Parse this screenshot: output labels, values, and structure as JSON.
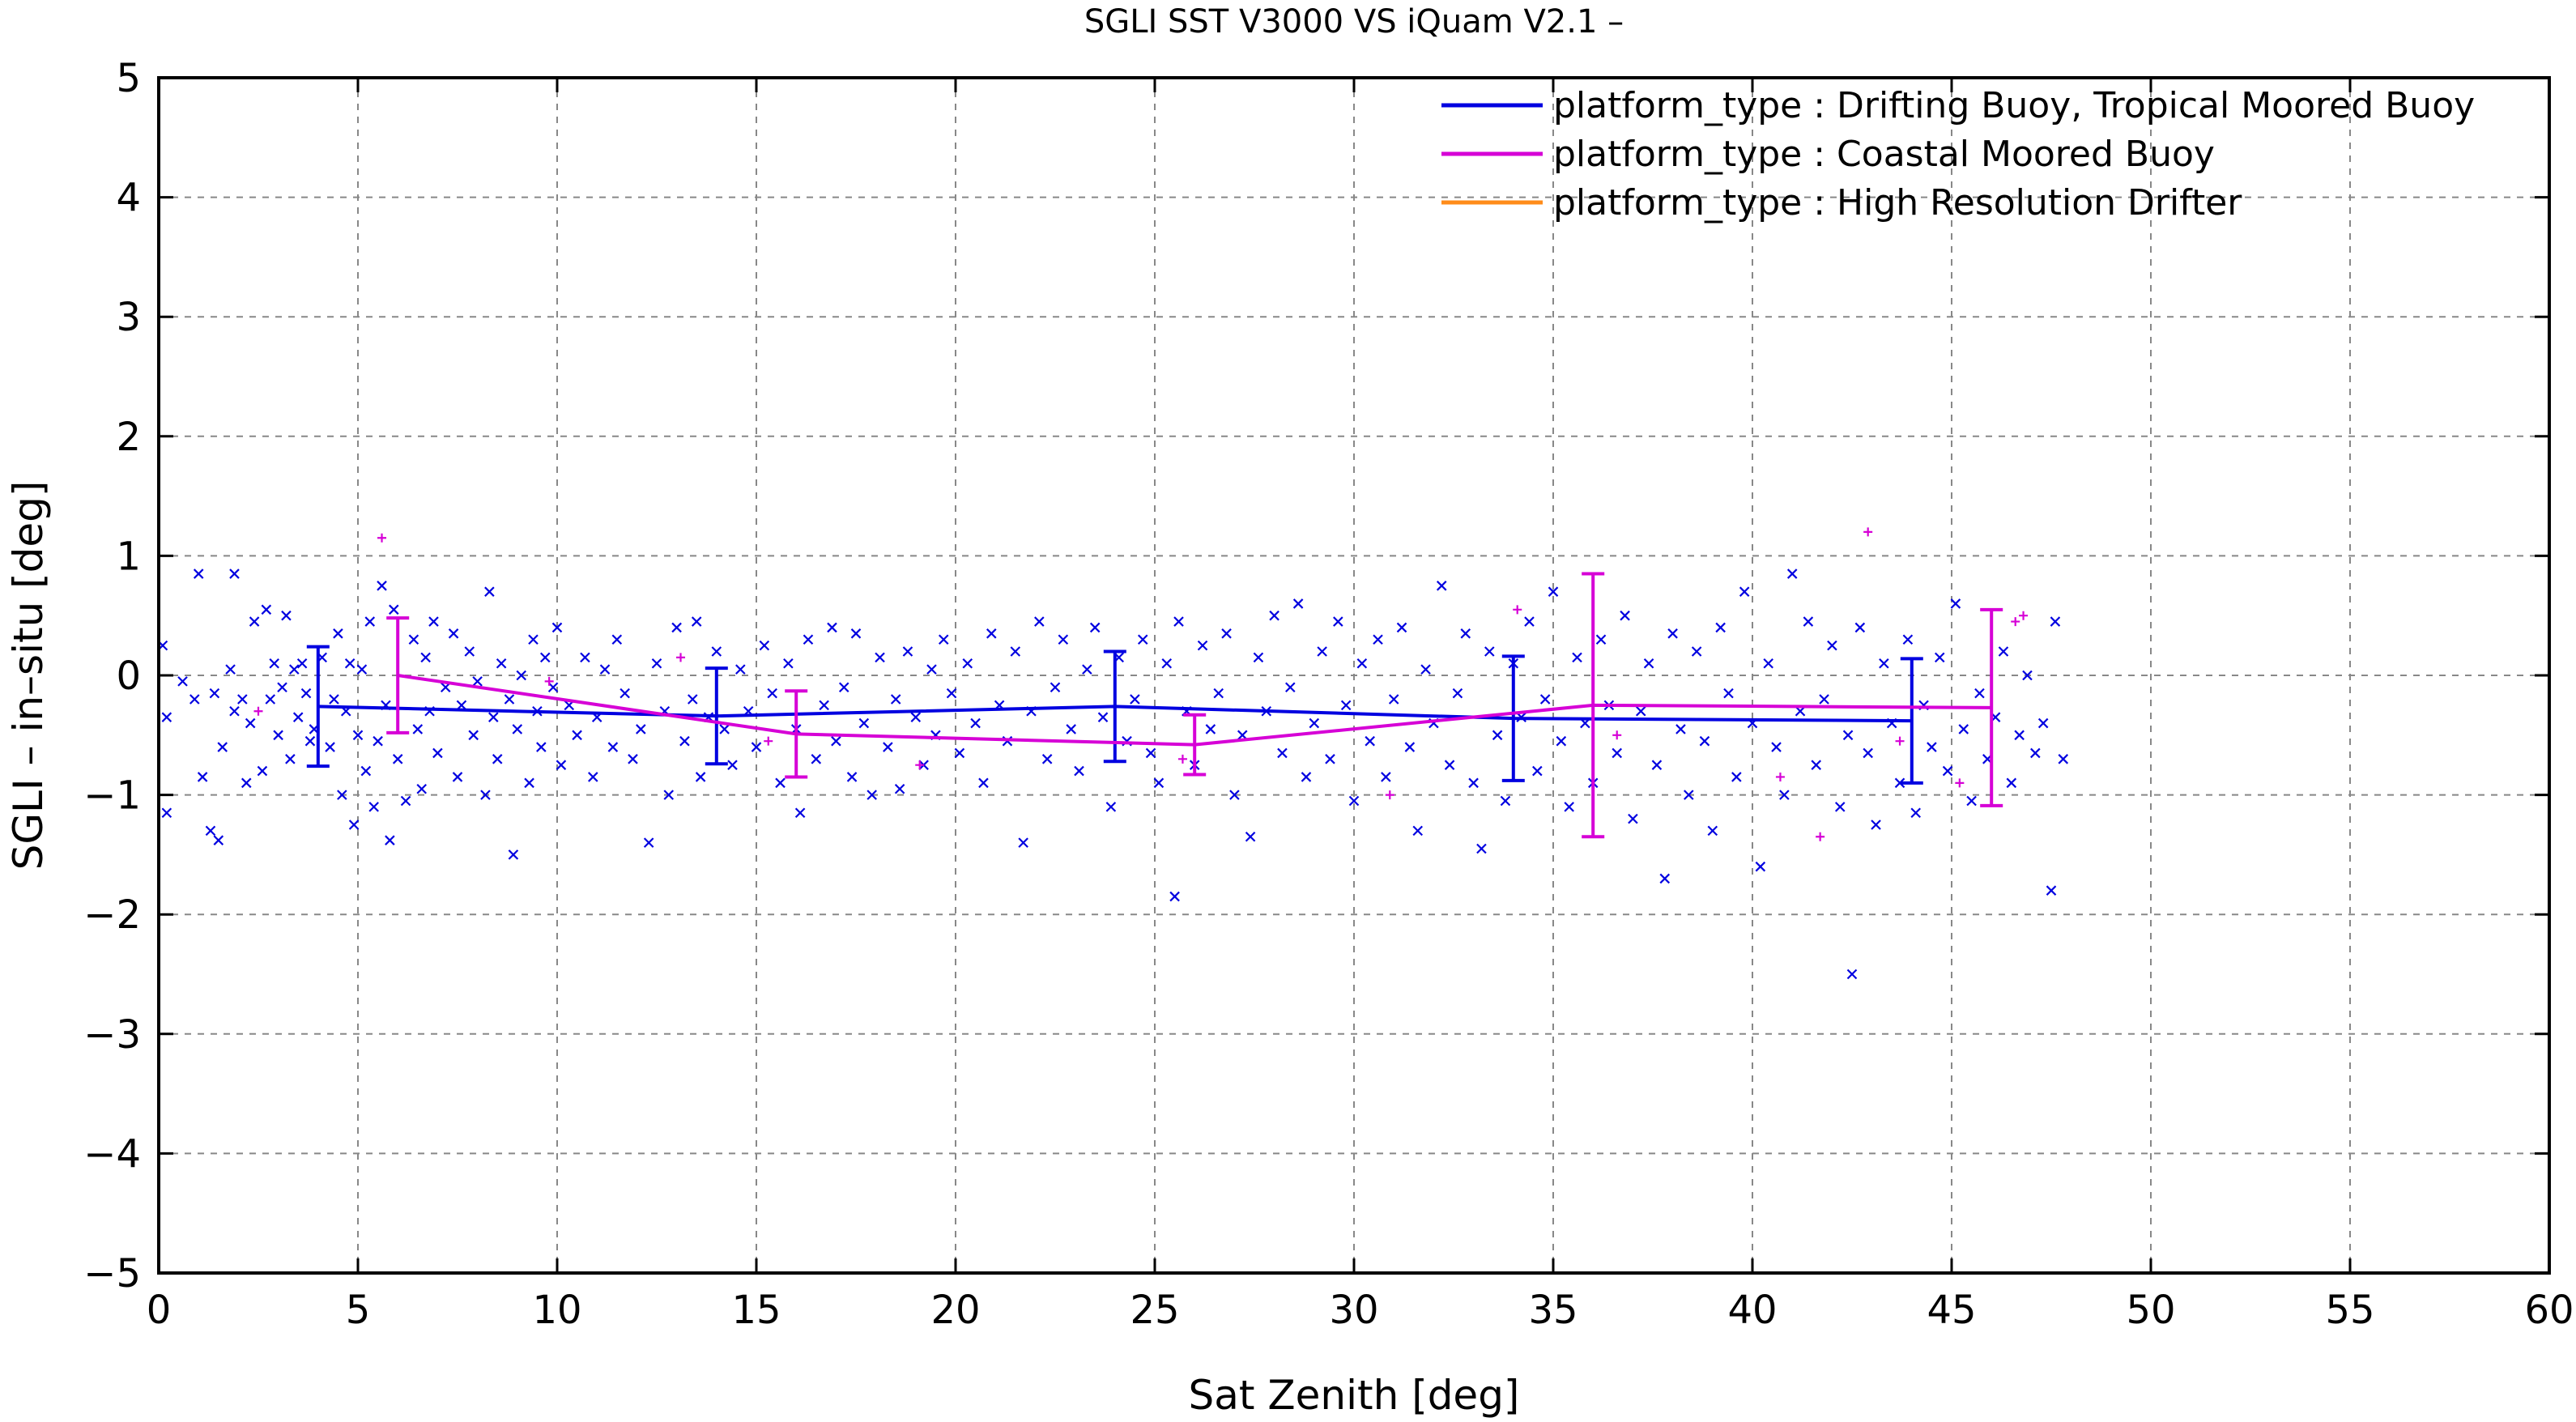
{
  "chart_data": {
    "type": "scatter",
    "title": "SGLI SST V3000 VS iQuam V2.1  –",
    "xlabel": "Sat Zenith [deg]",
    "ylabel": "SGLI – in–situ [deg]",
    "xlim": [
      0,
      60
    ],
    "ylim": [
      -5,
      5
    ],
    "x_ticks": [
      0,
      5,
      10,
      15,
      20,
      25,
      30,
      35,
      40,
      45,
      50,
      55,
      60
    ],
    "y_ticks": [
      -5,
      -4,
      -3,
      -2,
      -1,
      0,
      1,
      2,
      3,
      4,
      5
    ],
    "x_tick_labels": [
      "0",
      "5",
      "10",
      "15",
      "20",
      "25",
      "30",
      "35",
      "40",
      "45",
      "50",
      "55",
      "60"
    ],
    "y_tick_labels": [
      "−5",
      "−4",
      "−3",
      "−2",
      "−1",
      "0",
      "1",
      "2",
      "3",
      "4",
      "5"
    ],
    "grid": true,
    "legend_position": "top-right",
    "series": [
      {
        "name": "platform_type : Drifting Buoy, Tropical Moored Buoy",
        "color": "#0000e0",
        "marker": "x",
        "mean_x": [
          4,
          14,
          24,
          34,
          44
        ],
        "mean_y": [
          -0.26,
          -0.34,
          -0.26,
          -0.36,
          -0.38
        ],
        "err_y": [
          0.5,
          0.4,
          0.46,
          0.52,
          0.52
        ],
        "points": [
          [
            0.1,
            0.25
          ],
          [
            0.2,
            -0.35
          ],
          [
            0.2,
            -1.15
          ],
          [
            0.6,
            -0.05
          ],
          [
            0.9,
            -0.2
          ],
          [
            1.0,
            0.85
          ],
          [
            1.1,
            -0.85
          ],
          [
            1.3,
            -1.3
          ],
          [
            1.4,
            -0.15
          ],
          [
            1.5,
            -1.38
          ],
          [
            1.6,
            -0.6
          ],
          [
            1.8,
            0.05
          ],
          [
            1.9,
            -0.3
          ],
          [
            1.9,
            0.85
          ],
          [
            2.1,
            -0.2
          ],
          [
            2.2,
            -0.9
          ],
          [
            2.3,
            -0.4
          ],
          [
            2.4,
            0.45
          ],
          [
            2.6,
            -0.8
          ],
          [
            2.7,
            0.55
          ],
          [
            2.8,
            -0.2
          ],
          [
            2.9,
            0.1
          ],
          [
            3.0,
            -0.5
          ],
          [
            3.1,
            -0.1
          ],
          [
            3.2,
            0.5
          ],
          [
            3.3,
            -0.7
          ],
          [
            3.4,
            0.05
          ],
          [
            3.5,
            -0.35
          ],
          [
            3.6,
            0.1
          ],
          [
            3.7,
            -0.15
          ],
          [
            3.8,
            -0.55
          ],
          [
            3.9,
            -0.45
          ],
          [
            4.1,
            0.15
          ],
          [
            4.3,
            -0.6
          ],
          [
            4.4,
            -0.2
          ],
          [
            4.5,
            0.35
          ],
          [
            4.6,
            -1.0
          ],
          [
            4.7,
            -0.3
          ],
          [
            4.8,
            0.1
          ],
          [
            4.9,
            -1.25
          ],
          [
            5.0,
            -0.5
          ],
          [
            5.1,
            0.05
          ],
          [
            5.2,
            -0.8
          ],
          [
            5.3,
            0.45
          ],
          [
            5.4,
            -1.1
          ],
          [
            5.5,
            -0.55
          ],
          [
            5.6,
            0.75
          ],
          [
            5.7,
            -0.25
          ],
          [
            5.8,
            -1.38
          ],
          [
            5.9,
            0.55
          ],
          [
            6.0,
            -0.7
          ],
          [
            6.2,
            -1.05
          ],
          [
            6.4,
            0.3
          ],
          [
            6.5,
            -0.45
          ],
          [
            6.6,
            -0.95
          ],
          [
            6.7,
            0.15
          ],
          [
            6.8,
            -0.3
          ],
          [
            6.9,
            0.45
          ],
          [
            7.0,
            -0.65
          ],
          [
            7.2,
            -0.1
          ],
          [
            7.4,
            0.35
          ],
          [
            7.5,
            -0.85
          ],
          [
            7.6,
            -0.25
          ],
          [
            7.8,
            0.2
          ],
          [
            7.9,
            -0.5
          ],
          [
            8.0,
            -0.05
          ],
          [
            8.2,
            -1.0
          ],
          [
            8.3,
            0.7
          ],
          [
            8.4,
            -0.35
          ],
          [
            8.5,
            -0.7
          ],
          [
            8.6,
            0.1
          ],
          [
            8.8,
            -0.2
          ],
          [
            8.9,
            -1.5
          ],
          [
            9.0,
            -0.45
          ],
          [
            9.1,
            0.0
          ],
          [
            9.3,
            -0.9
          ],
          [
            9.4,
            0.3
          ],
          [
            9.5,
            -0.3
          ],
          [
            9.6,
            -0.6
          ],
          [
            9.7,
            0.15
          ],
          [
            9.9,
            -0.1
          ],
          [
            10.0,
            0.4
          ],
          [
            10.1,
            -0.75
          ],
          [
            10.3,
            -0.25
          ],
          [
            10.5,
            -0.5
          ],
          [
            10.7,
            0.15
          ],
          [
            10.9,
            -0.85
          ],
          [
            11.0,
            -0.35
          ],
          [
            11.2,
            0.05
          ],
          [
            11.4,
            -0.6
          ],
          [
            11.5,
            0.3
          ],
          [
            11.7,
            -0.15
          ],
          [
            11.9,
            -0.7
          ],
          [
            12.1,
            -0.45
          ],
          [
            12.3,
            -1.4
          ],
          [
            12.5,
            0.1
          ],
          [
            12.7,
            -0.3
          ],
          [
            12.8,
            -1.0
          ],
          [
            13.0,
            0.4
          ],
          [
            13.2,
            -0.55
          ],
          [
            13.4,
            -0.2
          ],
          [
            13.5,
            0.45
          ],
          [
            13.6,
            -0.85
          ],
          [
            13.8,
            -0.35
          ],
          [
            14.0,
            0.2
          ],
          [
            14.2,
            -0.45
          ],
          [
            14.4,
            -0.75
          ],
          [
            14.6,
            0.05
          ],
          [
            14.8,
            -0.3
          ],
          [
            15.0,
            -0.6
          ],
          [
            15.2,
            0.25
          ],
          [
            15.4,
            -0.15
          ],
          [
            15.6,
            -0.9
          ],
          [
            15.8,
            0.1
          ],
          [
            16.0,
            -0.45
          ],
          [
            16.1,
            -1.15
          ],
          [
            16.3,
            0.3
          ],
          [
            16.5,
            -0.7
          ],
          [
            16.7,
            -0.25
          ],
          [
            16.9,
            0.4
          ],
          [
            17.0,
            -0.55
          ],
          [
            17.2,
            -0.1
          ],
          [
            17.4,
            -0.85
          ],
          [
            17.5,
            0.35
          ],
          [
            17.7,
            -0.4
          ],
          [
            17.9,
            -1.0
          ],
          [
            18.1,
            0.15
          ],
          [
            18.3,
            -0.6
          ],
          [
            18.5,
            -0.2
          ],
          [
            18.6,
            -0.95
          ],
          [
            18.8,
            0.2
          ],
          [
            19.0,
            -0.35
          ],
          [
            19.2,
            -0.75
          ],
          [
            19.4,
            0.05
          ],
          [
            19.5,
            -0.5
          ],
          [
            19.7,
            0.3
          ],
          [
            19.9,
            -0.15
          ],
          [
            20.1,
            -0.65
          ],
          [
            20.3,
            0.1
          ],
          [
            20.5,
            -0.4
          ],
          [
            20.7,
            -0.9
          ],
          [
            20.9,
            0.35
          ],
          [
            21.1,
            -0.25
          ],
          [
            21.3,
            -0.55
          ],
          [
            21.5,
            0.2
          ],
          [
            21.7,
            -1.4
          ],
          [
            21.9,
            -0.3
          ],
          [
            22.1,
            0.45
          ],
          [
            22.3,
            -0.7
          ],
          [
            22.5,
            -0.1
          ],
          [
            22.7,
            0.3
          ],
          [
            22.9,
            -0.45
          ],
          [
            23.1,
            -0.8
          ],
          [
            23.3,
            0.05
          ],
          [
            23.5,
            0.4
          ],
          [
            23.7,
            -0.35
          ],
          [
            23.9,
            -1.1
          ],
          [
            24.1,
            0.15
          ],
          [
            24.3,
            -0.55
          ],
          [
            24.5,
            -0.2
          ],
          [
            24.7,
            0.3
          ],
          [
            24.9,
            -0.65
          ],
          [
            25.1,
            -0.9
          ],
          [
            25.3,
            0.1
          ],
          [
            25.5,
            -1.85
          ],
          [
            25.6,
            0.45
          ],
          [
            25.8,
            -0.3
          ],
          [
            26.0,
            -0.75
          ],
          [
            26.2,
            0.25
          ],
          [
            26.4,
            -0.45
          ],
          [
            26.6,
            -0.15
          ],
          [
            26.8,
            0.35
          ],
          [
            27.0,
            -1.0
          ],
          [
            27.2,
            -0.5
          ],
          [
            27.4,
            -1.35
          ],
          [
            27.6,
            0.15
          ],
          [
            27.8,
            -0.3
          ],
          [
            28.0,
            0.5
          ],
          [
            28.2,
            -0.65
          ],
          [
            28.4,
            -0.1
          ],
          [
            28.6,
            0.6
          ],
          [
            28.8,
            -0.85
          ],
          [
            29.0,
            -0.4
          ],
          [
            29.2,
            0.2
          ],
          [
            29.4,
            -0.7
          ],
          [
            29.6,
            0.45
          ],
          [
            29.8,
            -0.25
          ],
          [
            30.0,
            -1.05
          ],
          [
            30.2,
            0.1
          ],
          [
            30.4,
            -0.55
          ],
          [
            30.6,
            0.3
          ],
          [
            30.8,
            -0.85
          ],
          [
            31.0,
            -0.2
          ],
          [
            31.2,
            0.4
          ],
          [
            31.4,
            -0.6
          ],
          [
            31.6,
            -1.3
          ],
          [
            31.8,
            0.05
          ],
          [
            32.0,
            -0.4
          ],
          [
            32.2,
            0.75
          ],
          [
            32.4,
            -0.75
          ],
          [
            32.6,
            -0.15
          ],
          [
            32.8,
            0.35
          ],
          [
            33.0,
            -0.9
          ],
          [
            33.2,
            -1.45
          ],
          [
            33.4,
            0.2
          ],
          [
            33.6,
            -0.5
          ],
          [
            33.8,
            -1.05
          ],
          [
            34.0,
            0.1
          ],
          [
            34.2,
            -0.35
          ],
          [
            34.4,
            0.45
          ],
          [
            34.6,
            -0.8
          ],
          [
            34.8,
            -0.2
          ],
          [
            35.0,
            0.7
          ],
          [
            35.2,
            -0.55
          ],
          [
            35.4,
            -1.1
          ],
          [
            35.6,
            0.15
          ],
          [
            35.8,
            -0.4
          ],
          [
            36.0,
            -0.9
          ],
          [
            36.2,
            0.3
          ],
          [
            36.4,
            -0.25
          ],
          [
            36.6,
            -0.65
          ],
          [
            36.8,
            0.5
          ],
          [
            37.0,
            -1.2
          ],
          [
            37.2,
            -0.3
          ],
          [
            37.4,
            0.1
          ],
          [
            37.6,
            -0.75
          ],
          [
            37.8,
            -1.7
          ],
          [
            38.0,
            0.35
          ],
          [
            38.2,
            -0.45
          ],
          [
            38.4,
            -1.0
          ],
          [
            38.6,
            0.2
          ],
          [
            38.8,
            -0.55
          ],
          [
            39.0,
            -1.3
          ],
          [
            39.2,
            0.4
          ],
          [
            39.4,
            -0.15
          ],
          [
            39.6,
            -0.85
          ],
          [
            39.8,
            0.7
          ],
          [
            40.0,
            -0.4
          ],
          [
            40.2,
            -1.6
          ],
          [
            40.4,
            0.1
          ],
          [
            40.6,
            -0.6
          ],
          [
            40.8,
            -1.0
          ],
          [
            41.0,
            0.85
          ],
          [
            41.2,
            -0.3
          ],
          [
            41.4,
            0.45
          ],
          [
            41.6,
            -0.75
          ],
          [
            41.8,
            -0.2
          ],
          [
            42.0,
            0.25
          ],
          [
            42.2,
            -1.1
          ],
          [
            42.4,
            -0.5
          ],
          [
            42.5,
            -2.5
          ],
          [
            42.7,
            0.4
          ],
          [
            42.9,
            -0.65
          ],
          [
            43.1,
            -1.25
          ],
          [
            43.3,
            0.1
          ],
          [
            43.5,
            -0.4
          ],
          [
            43.7,
            -0.9
          ],
          [
            43.9,
            0.3
          ],
          [
            44.1,
            -1.15
          ],
          [
            44.3,
            -0.25
          ],
          [
            44.5,
            -0.6
          ],
          [
            44.7,
            0.15
          ],
          [
            44.9,
            -0.8
          ],
          [
            45.1,
            0.6
          ],
          [
            45.3,
            -0.45
          ],
          [
            45.5,
            -1.05
          ],
          [
            45.7,
            -0.15
          ],
          [
            45.9,
            -0.7
          ],
          [
            46.1,
            -0.35
          ],
          [
            46.3,
            0.2
          ],
          [
            46.5,
            -0.9
          ],
          [
            46.7,
            -0.5
          ],
          [
            46.9,
            0.0
          ],
          [
            47.1,
            -0.65
          ],
          [
            47.3,
            -0.4
          ],
          [
            47.5,
            -1.8
          ],
          [
            47.6,
            0.45
          ],
          [
            47.8,
            -0.7
          ]
        ]
      },
      {
        "name": "platform_type : Coastal Moored Buoy",
        "color": "#d600d6",
        "marker": "+",
        "mean_x": [
          6,
          16,
          26,
          36,
          46
        ],
        "mean_y": [
          0.0,
          -0.49,
          -0.58,
          -0.25,
          -0.27
        ],
        "err_y": [
          0.48,
          0.36,
          0.25,
          1.1,
          0.82
        ],
        "points": [
          [
            2.5,
            -0.3
          ],
          [
            5.6,
            1.15
          ],
          [
            9.8,
            -0.05
          ],
          [
            13.1,
            0.15
          ],
          [
            15.3,
            -0.55
          ],
          [
            19.1,
            -0.75
          ],
          [
            25.7,
            -0.7
          ],
          [
            30.9,
            -1.0
          ],
          [
            34.1,
            0.55
          ],
          [
            36.6,
            -0.5
          ],
          [
            40.7,
            -0.85
          ],
          [
            41.7,
            -1.35
          ],
          [
            42.9,
            1.2
          ],
          [
            43.7,
            -0.55
          ],
          [
            45.2,
            -0.9
          ],
          [
            46.6,
            0.45
          ],
          [
            46.8,
            0.5
          ]
        ]
      },
      {
        "name": "platform_type : High Resolution Drifter",
        "color": "#ff8c1a",
        "marker": "x",
        "mean_x": [],
        "mean_y": [],
        "err_y": [],
        "points": []
      }
    ]
  }
}
